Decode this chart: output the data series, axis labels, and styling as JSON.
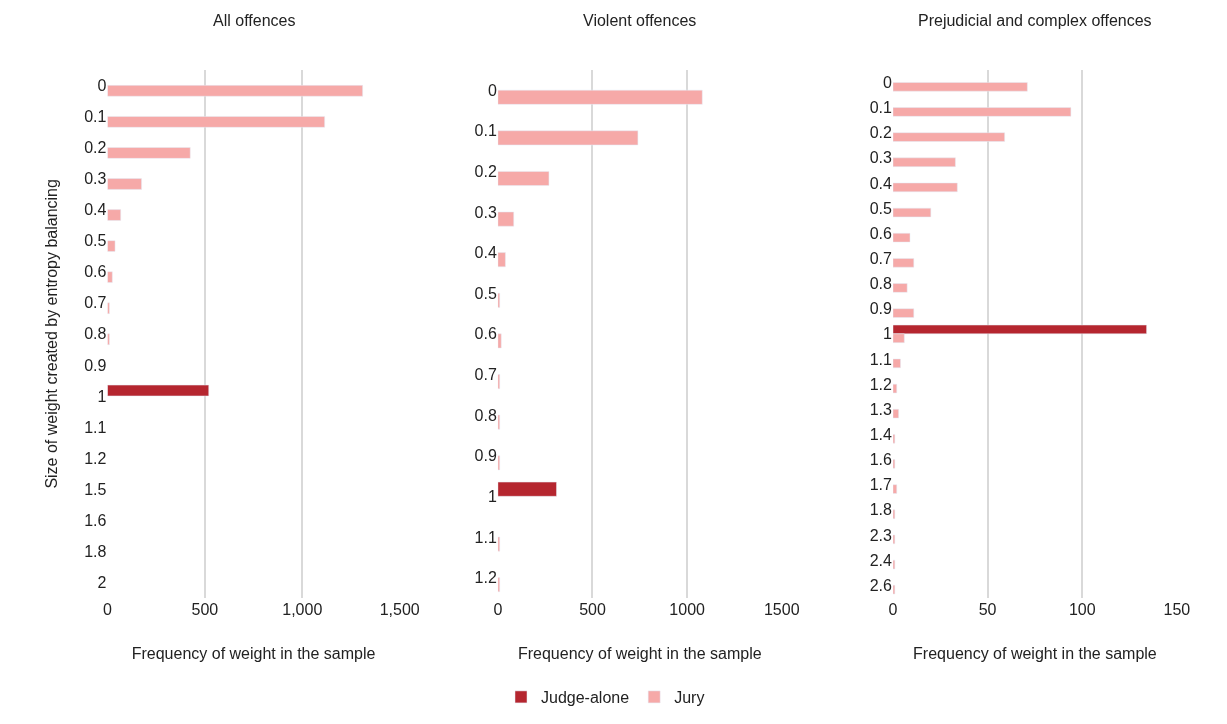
{
  "chart_data": [
    {
      "type": "bar",
      "orientation": "horizontal",
      "title": "All offences",
      "xlabel": "Frequency of weight in the sample",
      "ylabel": "Size of weight created by entropy balancing",
      "categories": [
        "0",
        "0.1",
        "0.2",
        "0.3",
        "0.4",
        "0.5",
        "0.6",
        "0.7",
        "0.8",
        "0.9",
        "1",
        "1.1",
        "1.2",
        "1.5",
        "1.6",
        "1.8",
        "2"
      ],
      "series": [
        {
          "name": "Judge-alone",
          "color": "#b5262f",
          "values": [
            null,
            null,
            null,
            null,
            null,
            null,
            null,
            null,
            null,
            null,
            520,
            null,
            null,
            null,
            null,
            null,
            null
          ]
        },
        {
          "name": "Jury",
          "color": "#f6a9a8",
          "values": [
            1310,
            1115,
            425,
            175,
            68,
            39,
            25,
            10,
            10,
            null,
            null,
            null,
            null,
            null,
            null,
            null,
            null
          ]
        }
      ],
      "xlim": [
        0,
        1500
      ],
      "xticks": [
        0,
        500,
        {
          "value": 1000,
          "label": "1,000"
        },
        {
          "value": 1500,
          "label": "1,500"
        }
      ],
      "grid": "x",
      "legend": "bottom"
    },
    {
      "type": "bar",
      "orientation": "horizontal",
      "title": "Violent offences",
      "xlabel": "Frequency of weight in the sample",
      "categories": [
        "0",
        "0.1",
        "0.2",
        "0.3",
        "0.4",
        "0.5",
        "0.6",
        "0.7",
        "0.8",
        "0.9",
        "1",
        "1.1",
        "1.2"
      ],
      "series": [
        {
          "name": "Judge-alone",
          "color": "#b5262f",
          "values": [
            null,
            null,
            null,
            null,
            null,
            null,
            null,
            null,
            null,
            null,
            310,
            null,
            null
          ]
        },
        {
          "name": "Jury",
          "color": "#f6a9a8",
          "values": [
            1080,
            740,
            270,
            84,
            40,
            10,
            18,
            10,
            10,
            10,
            null,
            10,
            10
          ]
        }
      ],
      "xlim": [
        0,
        1500
      ],
      "xticks": [
        0,
        500,
        1000,
        1500
      ],
      "grid": "x",
      "legend": "bottom"
    },
    {
      "type": "bar",
      "orientation": "horizontal",
      "title": "Prejudicial and complex offences",
      "xlabel": "Frequency of weight in the sample",
      "categories": [
        "0",
        "0.1",
        "0.2",
        "0.3",
        "0.4",
        "0.5",
        "0.6",
        "0.7",
        "0.8",
        "0.9",
        "1",
        "1.1",
        "1.2",
        "1.3",
        "1.4",
        "1.6",
        "1.7",
        "1.8",
        "2.3",
        "2.4",
        "2.6"
      ],
      "series": [
        {
          "name": "Judge-alone",
          "color": "#b5262f",
          "values": [
            null,
            null,
            null,
            null,
            null,
            null,
            null,
            null,
            null,
            null,
            134,
            null,
            null,
            null,
            null,
            null,
            null,
            null,
            null,
            null,
            null
          ]
        },
        {
          "name": "Jury",
          "color": "#f6a9a8",
          "values": [
            71,
            94,
            59,
            33,
            34,
            20,
            9,
            11,
            7.5,
            11,
            6,
            4,
            2,
            3,
            1,
            1,
            2,
            1,
            1,
            1,
            1
          ]
        }
      ],
      "xlim": [
        0,
        150
      ],
      "xticks": [
        0,
        50,
        100,
        150
      ],
      "grid": "x",
      "legend": "bottom"
    }
  ]
}
